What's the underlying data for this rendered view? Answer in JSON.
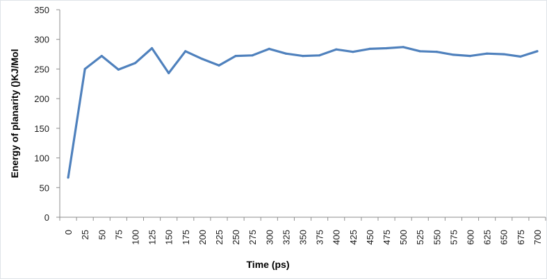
{
  "chart_data": {
    "type": "line",
    "title": "",
    "xlabel": "Time (ps)",
    "ylabel": "Energy of planarity ()KJ/Mol",
    "ylim": [
      0,
      350
    ],
    "yticks": [
      0,
      50,
      100,
      150,
      200,
      250,
      300,
      350
    ],
    "categories": [
      "0",
      "25",
      "50",
      "75",
      "100",
      "125",
      "150",
      "175",
      "200",
      "225",
      "250",
      "275",
      "300",
      "325",
      "350",
      "375",
      "400",
      "425",
      "450",
      "475",
      "500",
      "525",
      "550",
      "575",
      "600",
      "625",
      "650",
      "675",
      "700"
    ],
    "series": [
      {
        "values": [
          67,
          250,
          272,
          249,
          260,
          285,
          243,
          280,
          267,
          256,
          272,
          273,
          284,
          276,
          272,
          273,
          283,
          279,
          284,
          285,
          287,
          280,
          279,
          274,
          272,
          276,
          275,
          271,
          280
        ],
        "color": "#4f81bd"
      }
    ],
    "grid": false,
    "legend": "none"
  }
}
